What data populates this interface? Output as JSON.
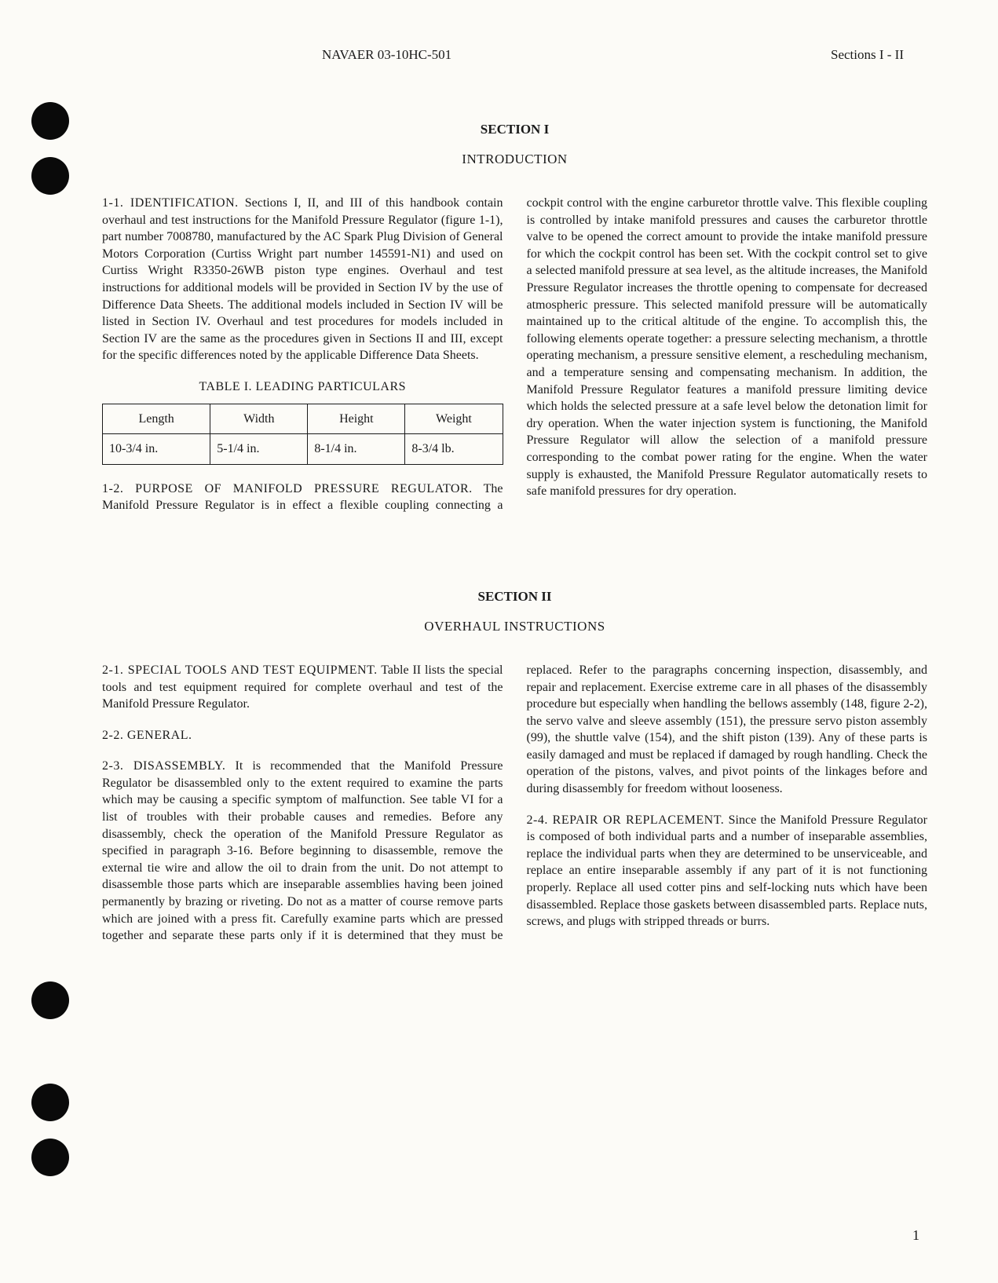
{
  "header": {
    "doc_number": "NAVAER 03-10HC-501",
    "sections_label": "Sections I - II"
  },
  "section1": {
    "heading": "SECTION I",
    "subheading": "INTRODUCTION",
    "para1_1_label": "1-1. IDENTIFICATION.",
    "para1_1_text": " Sections I, II, and III of this handbook contain overhaul and test instructions for the Manifold Pressure Regulator (figure 1-1), part number 7008780, manufactured by the AC Spark Plug Division of General Motors Corporation (Curtiss Wright part number 145591-N1) and used on Curtiss Wright R3350-26WB piston type engines. Overhaul and test instructions for additional models will be provided in Section IV by the use of Difference Data Sheets. The additional models included in Section IV will be listed in Section IV. Overhaul and test procedures for models included in Section IV are the same as the procedures given in Sections II and III, except for the specific differences noted by the applicable Difference Data Sheets.",
    "table_caption": "TABLE I. LEADING PARTICULARS",
    "table": {
      "headers": [
        "Length",
        "Width",
        "Height",
        "Weight"
      ],
      "row": [
        "10-3/4 in.",
        "5-1/4 in.",
        "8-1/4 in.",
        "8-3/4 lb."
      ]
    },
    "para1_2_label": "1-2. PURPOSE OF MANIFOLD PRESSURE REGULATOR.",
    "para1_2_text": " The Manifold Pressure Regulator is in effect a flexible coupling connecting a cockpit control with the engine carburetor throttle valve. This flexible coupling is controlled by intake manifold pressures and causes the carburetor throttle valve to be opened the correct amount to provide the intake manifold pressure for which the cockpit control has been set. With the cockpit control set to give a selected manifold pressure at sea level, as the altitude increases, the Manifold Pressure Regulator increases the throttle opening to compensate for decreased atmospheric pressure. This selected manifold pressure will be automatically maintained up to the critical altitude of the engine. To accomplish this, the following elements operate together: a pressure selecting mechanism, a throttle operating mechanism, a pressure sensitive element, a rescheduling mechanism, and a temperature sensing and compensating mechanism. In addition, the Manifold Pressure Regulator features a manifold pressure limiting device which holds the selected pressure at a safe level below the detonation limit for dry operation. When the water injection system is functioning, the Manifold Pressure Regulator will allow the selection of a manifold pressure corresponding to the combat power rating for the engine. When the water supply is exhausted, the Manifold Pressure Regulator automatically resets to safe manifold pressures for dry operation."
  },
  "section2": {
    "heading": "SECTION II",
    "subheading": "OVERHAUL INSTRUCTIONS",
    "para2_1_label": "2-1. SPECIAL TOOLS AND TEST EQUIPMENT.",
    "para2_1_text": " Table II lists the special tools and test equipment required for complete overhaul and test of the Manifold Pressure Regulator.",
    "para2_2_label": "2-2. GENERAL.",
    "para2_3_label": "2-3. DISASSEMBLY.",
    "para2_3_text": " It is recommended that the Manifold Pressure Regulator be disassembled only to the extent required to examine the parts which may be causing a specific symptom of malfunction. See table VI for a list of troubles with their probable causes and remedies. Before any disassembly, check the operation of the Manifold Pressure Regulator as specified in paragraph 3-16. Before beginning to disassemble, remove the external tie wire and allow the oil to drain from the unit. Do not attempt to disassemble those parts which are inseparable assemblies having been joined permanently by brazing or riveting. Do not as a matter of course remove parts which are joined with a press fit. Carefully examine parts which are pressed together and separate these parts only if it is determined that they must be replaced. Refer to the paragraphs concerning inspection, disassembly, and repair and replacement. Exercise extreme care in all phases of the disassembly procedure but especially when handling the bellows assembly (148, figure 2-2), the servo valve and sleeve assembly (151), the pressure servo piston assembly (99), the shuttle valve (154), and the shift piston (139). Any of these parts is easily damaged and must be replaced if damaged by rough handling. Check the operation of the pistons, valves, and pivot points of the linkages before and during disassembly for freedom without looseness.",
    "para2_4_label": "2-4. REPAIR OR REPLACEMENT.",
    "para2_4_text": " Since the Manifold Pressure Regulator is composed of both individual parts and a number of inseparable assemblies, replace the individual parts when they are determined to be unserviceable, and replace an entire inseparable assembly if any part of it is not functioning properly. Replace all used cotter pins and self-locking nuts which have been disassembled. Replace those gaskets between disassembled parts. Replace nuts, screws, and plugs with stripped threads or burrs."
  },
  "page_number": "1"
}
